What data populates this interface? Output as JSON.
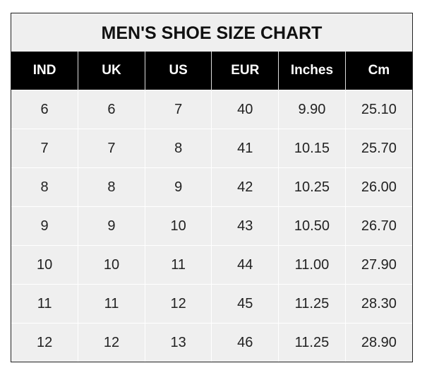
{
  "title": "MEN'S SHOE SIZE CHART",
  "headers": [
    "IND",
    "UK",
    "US",
    "EUR",
    "Inches",
    "Cm"
  ],
  "rows": [
    [
      "6",
      "6",
      "7",
      "40",
      "9.90",
      "25.10"
    ],
    [
      "7",
      "7",
      "8",
      "41",
      "10.15",
      "25.70"
    ],
    [
      "8",
      "8",
      "9",
      "42",
      "10.25",
      "26.00"
    ],
    [
      "9",
      "9",
      "10",
      "43",
      "10.50",
      "26.70"
    ],
    [
      "10",
      "10",
      "11",
      "44",
      "11.00",
      "27.90"
    ],
    [
      "11",
      "11",
      "12",
      "45",
      "11.25",
      "28.30"
    ],
    [
      "12",
      "12",
      "13",
      "46",
      "11.25",
      "28.90"
    ]
  ]
}
